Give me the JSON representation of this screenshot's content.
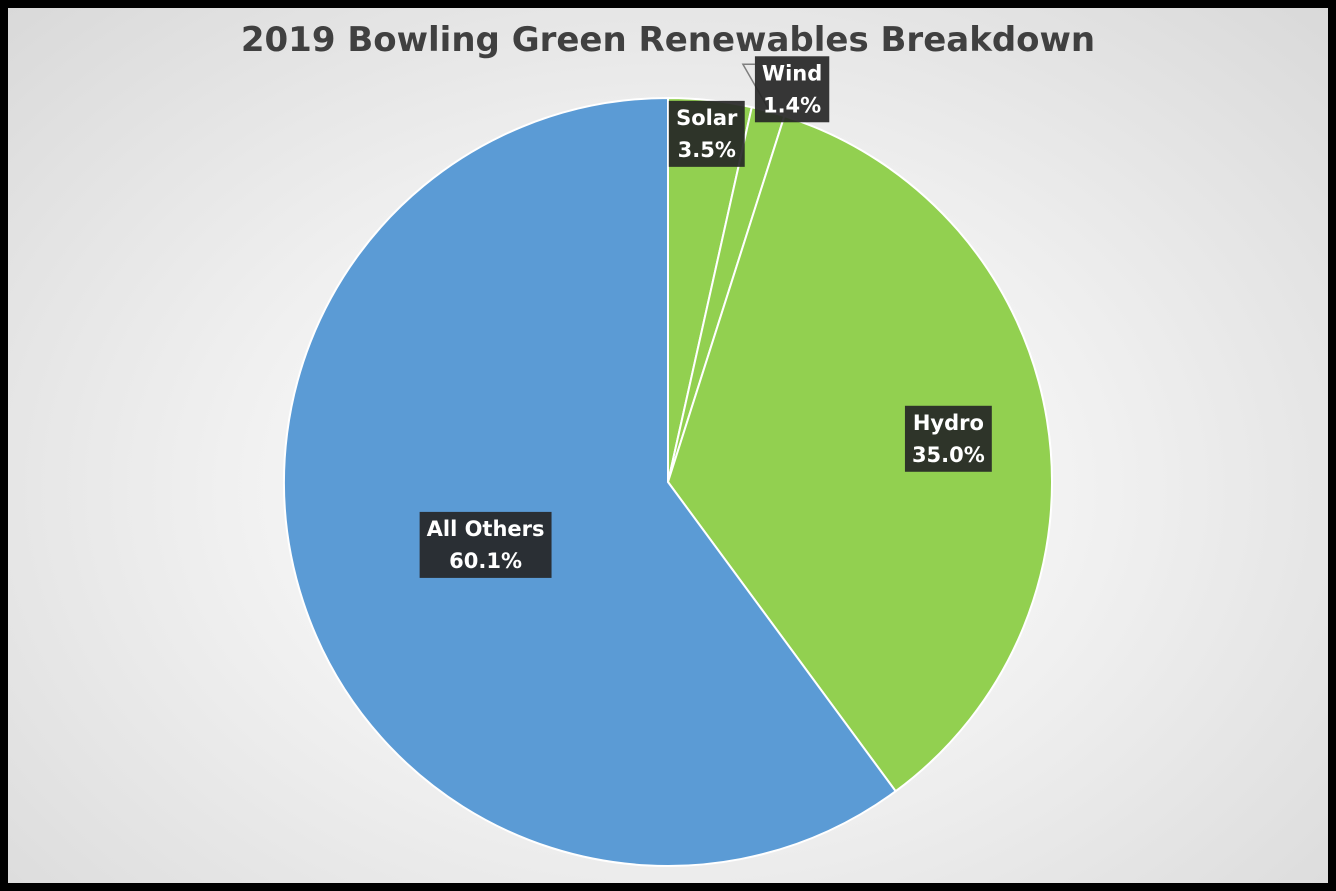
{
  "chart_data": {
    "type": "pie",
    "title": "2019 Bowling Green Renewables Breakdown",
    "slices": [
      {
        "label": "Solar",
        "value": 3.5,
        "value_label": "3.5%",
        "color": "#92d050"
      },
      {
        "label": "Wind",
        "value": 1.4,
        "value_label": "1.4%",
        "color": "#92d050"
      },
      {
        "label": "Hydro",
        "value": 35.0,
        "value_label": "35.0%",
        "color": "#92d050"
      },
      {
        "label": "All Others",
        "value": 60.1,
        "value_label": "60.1%",
        "color": "#5b9bd5"
      }
    ],
    "start_angle": "12 o'clock",
    "direction": "clockwise",
    "labels": "category and percentage in dark boxes",
    "legend": "none"
  }
}
